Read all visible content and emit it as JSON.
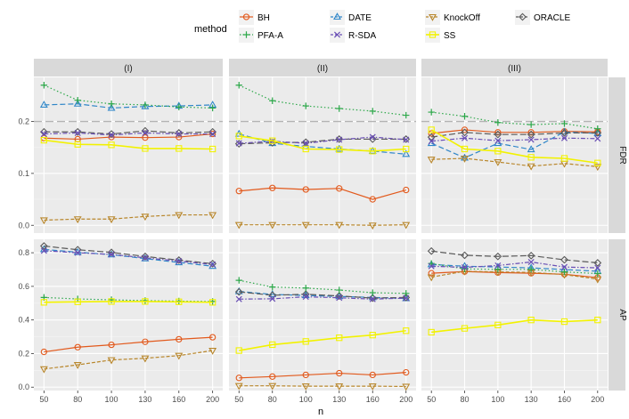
{
  "chart_data": {
    "type": "line",
    "facet_cols": [
      "(I)",
      "(II)",
      "(III)"
    ],
    "facet_rows": [
      "FDR",
      "AP"
    ],
    "xlabel": "n",
    "x": [
      50,
      80,
      100,
      130,
      160,
      200
    ],
    "legend": {
      "title": "method",
      "position": "top",
      "entries": [
        "BH",
        "DATE",
        "KnockOff",
        "ORACLE",
        "PFA-A",
        "R-SDA",
        "SS"
      ]
    },
    "rows": {
      "FDR": {
        "ylim": [
          -0.015,
          0.285
        ],
        "yticks": [
          0.0,
          0.1,
          0.2
        ],
        "ytick_labels": [
          "0.0",
          "0.1",
          "0.2"
        ],
        "reference_line": 0.2
      },
      "AP": {
        "ylim": [
          -0.02,
          0.88
        ],
        "yticks": [
          0.0,
          0.2,
          0.4,
          0.6,
          0.8
        ],
        "ytick_labels": [
          "0.0",
          "0.2",
          "0.4",
          "0.6",
          "0.8"
        ]
      }
    },
    "series_styles": {
      "BH": {
        "color": "#e2591c",
        "dash": "",
        "marker": "circle"
      },
      "DATE": {
        "color": "#2f86c8",
        "dash": "6,3",
        "marker": "triangle"
      },
      "KnockOff": {
        "color": "#b8862b",
        "dash": "4,2",
        "marker": "tri-down"
      },
      "ORACLE": {
        "color": "#5a5a5a",
        "dash": "7,3",
        "marker": "diamond"
      },
      "PFA-A": {
        "color": "#2da84a",
        "dash": "1.5,2.5",
        "marker": "plus"
      },
      "R-SDA": {
        "color": "#6a4fb5",
        "dash": "5,2,1.5,2",
        "marker": "cross"
      },
      "SS": {
        "color": "#f2f200",
        "dash": "",
        "marker": "square"
      }
    },
    "panels": {
      "FDR": {
        "(I)": {
          "BH": [
            0.168,
            0.166,
            0.17,
            0.169,
            0.17,
            0.176
          ],
          "DATE": [
            0.232,
            0.234,
            0.226,
            0.229,
            0.23,
            0.232
          ],
          "KnockOff": [
            0.01,
            0.012,
            0.012,
            0.017,
            0.02,
            0.02
          ],
          "ORACLE": [
            0.18,
            0.18,
            0.176,
            0.182,
            0.178,
            0.18
          ],
          "PFA-A": [
            0.27,
            0.241,
            0.234,
            0.232,
            0.228,
            0.226
          ],
          "R-SDA": [
            0.176,
            0.178,
            0.174,
            0.178,
            0.176,
            0.176
          ],
          "SS": [
            0.164,
            0.156,
            0.155,
            0.148,
            0.148,
            0.147
          ]
        },
        "(II)": {
          "BH": [
            0.066,
            0.072,
            0.069,
            0.071,
            0.05,
            0.068
          ],
          "DATE": [
            0.176,
            0.158,
            0.152,
            0.147,
            0.143,
            0.137
          ],
          "KnockOff": [
            0.001,
            0.001,
            0.001,
            0.001,
            0.0,
            0.001
          ],
          "ORACLE": [
            0.157,
            0.159,
            0.16,
            0.166,
            0.166,
            0.166
          ],
          "PFA-A": [
            0.27,
            0.24,
            0.23,
            0.225,
            0.22,
            0.212
          ],
          "R-SDA": [
            0.158,
            0.162,
            0.158,
            0.165,
            0.17,
            0.165
          ],
          "SS": [
            0.172,
            0.163,
            0.147,
            0.146,
            0.143,
            0.147
          ]
        },
        "(III)": {
          "BH": [
            0.177,
            0.184,
            0.179,
            0.179,
            0.181,
            0.18
          ],
          "DATE": [
            0.158,
            0.13,
            0.158,
            0.146,
            0.18,
            0.177
          ],
          "KnockOff": [
            0.127,
            0.129,
            0.122,
            0.114,
            0.119,
            0.113
          ],
          "ORACLE": [
            0.17,
            0.179,
            0.175,
            0.175,
            0.178,
            0.178
          ],
          "PFA-A": [
            0.218,
            0.21,
            0.198,
            0.194,
            0.196,
            0.186
          ],
          "R-SDA": [
            0.162,
            0.168,
            0.163,
            0.165,
            0.168,
            0.167
          ],
          "SS": [
            0.184,
            0.147,
            0.143,
            0.131,
            0.129,
            0.12
          ]
        }
      },
      "AP": {
        "(I)": {
          "BH": [
            0.21,
            0.238,
            0.252,
            0.27,
            0.285,
            0.297
          ],
          "DATE": [
            0.82,
            0.803,
            0.789,
            0.765,
            0.742,
            0.72
          ],
          "KnockOff": [
            0.108,
            0.133,
            0.162,
            0.172,
            0.188,
            0.218
          ],
          "ORACLE": [
            0.84,
            0.818,
            0.802,
            0.778,
            0.756,
            0.735
          ],
          "PFA-A": [
            0.534,
            0.525,
            0.52,
            0.515,
            0.512,
            0.51
          ],
          "R-SDA": [
            0.812,
            0.8,
            0.79,
            0.77,
            0.75,
            0.73
          ],
          "SS": [
            0.505,
            0.508,
            0.51,
            0.51,
            0.508,
            0.505
          ]
        },
        "(II)": {
          "BH": [
            0.055,
            0.063,
            0.073,
            0.083,
            0.073,
            0.088
          ],
          "DATE": [
            0.57,
            0.552,
            0.546,
            0.54,
            0.534,
            0.528
          ],
          "KnockOff": [
            0.008,
            0.008,
            0.006,
            0.006,
            0.006,
            0.004
          ],
          "ORACLE": [
            0.567,
            0.547,
            0.553,
            0.543,
            0.53,
            0.534
          ],
          "PFA-A": [
            0.636,
            0.596,
            0.59,
            0.578,
            0.562,
            0.558
          ],
          "R-SDA": [
            0.524,
            0.526,
            0.538,
            0.532,
            0.524,
            0.53
          ],
          "SS": [
            0.218,
            0.253,
            0.272,
            0.294,
            0.31,
            0.336
          ]
        },
        "(III)": {
          "BH": [
            0.678,
            0.688,
            0.682,
            0.678,
            0.672,
            0.652
          ],
          "DATE": [
            0.73,
            0.72,
            0.715,
            0.71,
            0.7,
            0.69
          ],
          "KnockOff": [
            0.655,
            0.69,
            0.686,
            0.683,
            0.67,
            0.643
          ],
          "ORACLE": [
            0.81,
            0.785,
            0.778,
            0.783,
            0.758,
            0.74
          ],
          "PFA-A": [
            0.736,
            0.704,
            0.701,
            0.701,
            0.686,
            0.676
          ],
          "R-SDA": [
            0.72,
            0.713,
            0.724,
            0.745,
            0.715,
            0.71
          ],
          "SS": [
            0.327,
            0.35,
            0.37,
            0.4,
            0.39,
            0.4
          ]
        }
      }
    }
  }
}
